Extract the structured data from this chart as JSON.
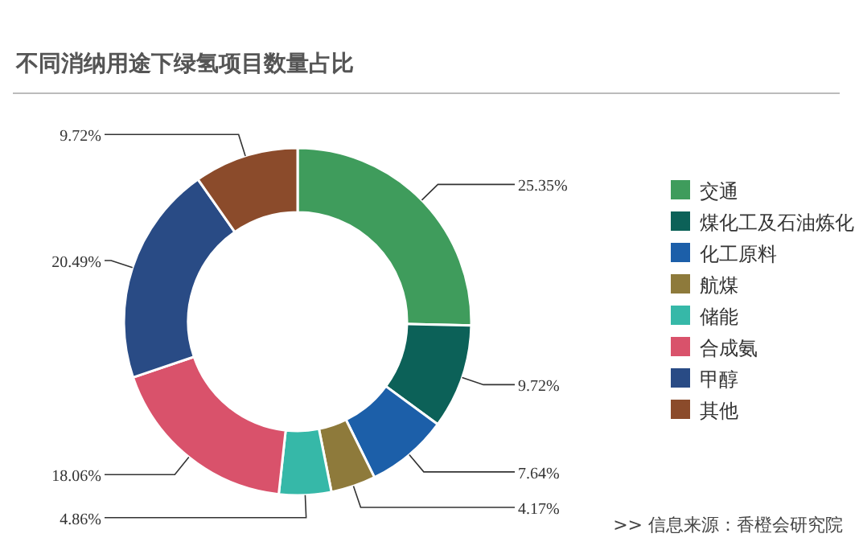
{
  "chart_data": {
    "type": "donut",
    "title": "不同消纳用途下绿氢项目数量占比",
    "categories": [
      "交通",
      "煤化工及石油炼化",
      "化工原料",
      "航煤",
      "储能",
      "合成氨",
      "甲醇",
      "其他"
    ],
    "values": [
      25.35,
      9.72,
      7.64,
      4.17,
      4.86,
      18.06,
      20.49,
      9.72
    ],
    "value_labels": [
      "25.35%",
      "9.72%",
      "7.64%",
      "4.17%",
      "4.86%",
      "18.06%",
      "20.49%",
      "9.72%"
    ],
    "colors": [
      "#3f9c5c",
      "#0c6158",
      "#1c5fa9",
      "#8e7a3b",
      "#36b8a8",
      "#d9526b",
      "#294b85",
      "#8b4b2b"
    ],
    "legend": "right",
    "annotations": [
      ">>  信息来源：香橙会研究院"
    ]
  }
}
